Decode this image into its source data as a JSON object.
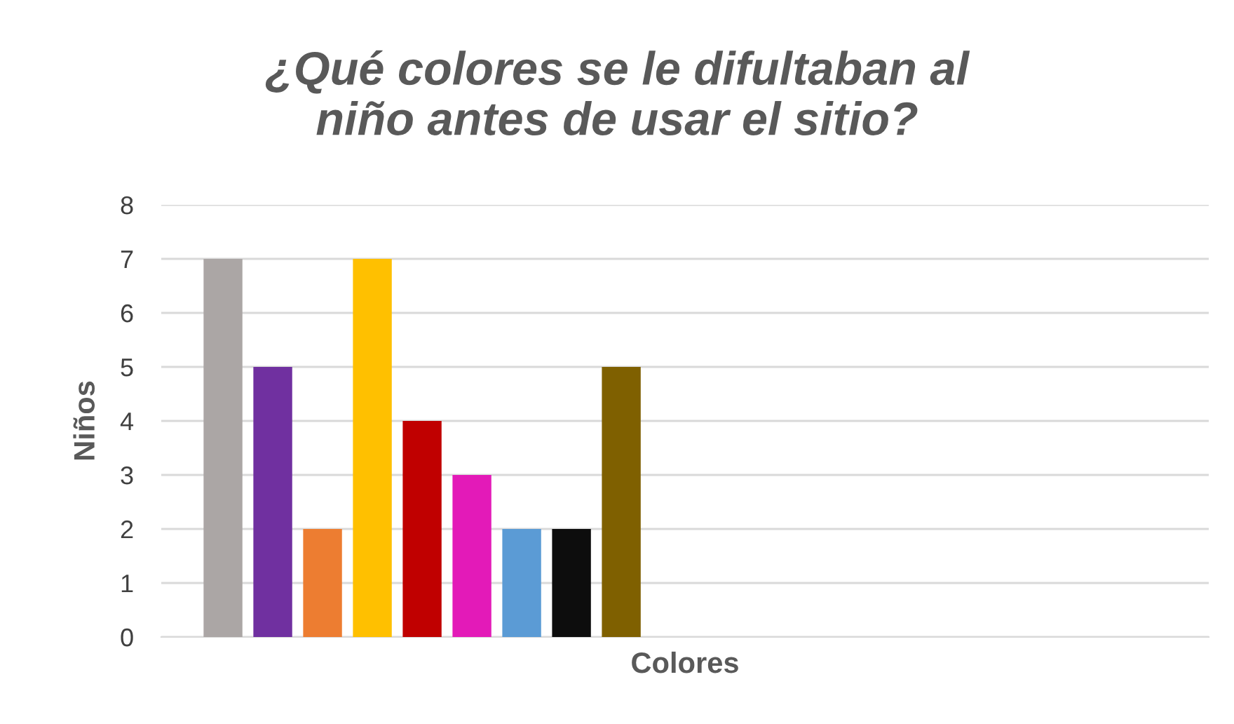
{
  "chart_data": {
    "type": "bar",
    "title": "¿Qué colores se le difultaban al\nniño antes de usar el sitio?",
    "xlabel": "Colores",
    "ylabel": "Niños",
    "categories": [
      null,
      null,
      null,
      null,
      null,
      null,
      null,
      null,
      null
    ],
    "values": [
      7,
      5,
      2,
      7,
      4,
      3,
      2,
      2,
      5
    ],
    "colors": [
      "#aba6a5",
      "#7030a0",
      "#ed7d31",
      "#ffc000",
      "#c00000",
      "#e31ab8",
      "#5b9bd5",
      "#0d0d0d",
      "#7f6000"
    ],
    "ylim": [
      0,
      8
    ],
    "yticks": [
      0,
      1,
      2,
      3,
      4,
      5,
      6,
      7,
      8
    ],
    "grid": "y"
  }
}
